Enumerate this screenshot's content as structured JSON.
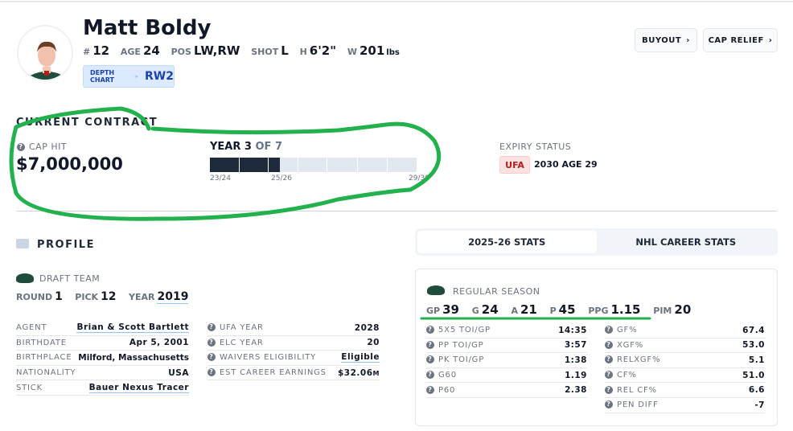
{
  "player": {
    "name": "Matt Boldy",
    "info": [
      {
        "label": "#",
        "value": "12"
      },
      {
        "label": "AGE",
        "value": "24"
      },
      {
        "label": "POS",
        "value": "LW,RW"
      },
      {
        "label": "SHOT",
        "value": "L"
      },
      {
        "label": "H",
        "value": "6'2\""
      },
      {
        "label": "W",
        "value": "201",
        "unit": "lbs"
      }
    ],
    "depth_chart": {
      "label": "DEPTH CHART",
      "value": "RW2"
    }
  },
  "actions": {
    "buyout": "BUYOUT",
    "cap_relief": "CAP RELIEF"
  },
  "contract": {
    "heading": "CURRENT CONTRACT",
    "cap_hit_label": "CAP HIT",
    "cap_hit": "$7,000,000",
    "year_prefix": "YEAR",
    "year_current": "3",
    "year_of": "OF 7",
    "progress_years_elapsed": 2.4,
    "total_years": 7,
    "ticks": [
      "23/24",
      "25/26",
      "29/30"
    ],
    "expiry_label": "EXPIRY STATUS",
    "expiry_badge": "UFA",
    "expiry_text": "2030 AGE 29",
    "colors": {
      "filled": "#1e293b",
      "empty": "#e2e8f0",
      "badge_bg": "#fee2e2",
      "badge_text": "#b91c1c"
    }
  },
  "profile": {
    "heading": "PROFILE",
    "draft_team_label": "DRAFT TEAM",
    "draft": [
      {
        "label": "ROUND",
        "value": "1"
      },
      {
        "label": "PICK",
        "value": "12"
      },
      {
        "label": "YEAR",
        "value": "2019"
      }
    ],
    "left_rows": [
      {
        "label": "AGENT",
        "value": "Brian & Scott Bartlett"
      },
      {
        "label": "BIRTHDATE",
        "value": "Apr 5, 2001"
      },
      {
        "label": "BIRTHPLACE",
        "value": "Milford, Massachusetts"
      },
      {
        "label": "NATIONALITY",
        "value": "USA"
      },
      {
        "label": "STICK",
        "value": "Bauer Nexus Tracer"
      }
    ],
    "right_rows": [
      {
        "label": "UFA YEAR",
        "value": "2028"
      },
      {
        "label": "ELC YEAR",
        "value": "20"
      },
      {
        "label": "WAIVERS ELIGIBILITY",
        "value": "Eligible"
      },
      {
        "label": "EST CAREER EARNINGS",
        "value": "$32.06",
        "unit": "M"
      }
    ]
  },
  "stats": {
    "tabs": [
      "2025-26 STATS",
      "NHL CAREER STATS"
    ],
    "season_label": "REGULAR SEASON",
    "summary": [
      {
        "label": "GP",
        "value": "39"
      },
      {
        "label": "G",
        "value": "24"
      },
      {
        "label": "A",
        "value": "21"
      },
      {
        "label": "P",
        "value": "45"
      },
      {
        "label": "PPG",
        "value": "1.15"
      },
      {
        "label": "PIM",
        "value": "20"
      }
    ],
    "left_rows": [
      {
        "label": "5X5 TOI/GP",
        "value": "14:35"
      },
      {
        "label": "PP TOI/GP",
        "value": "3:57"
      },
      {
        "label": "PK TOI/GP",
        "value": "1:38"
      },
      {
        "label": "G60",
        "value": "1.19"
      },
      {
        "label": "P60",
        "value": "2.38"
      }
    ],
    "right_rows": [
      {
        "label": "GF%",
        "value": "67.4"
      },
      {
        "label": "XGF%",
        "value": "53.0"
      },
      {
        "label": "RELXGF%",
        "value": "5.1"
      },
      {
        "label": "CF%",
        "value": "51.0"
      },
      {
        "label": "REL CF%",
        "value": "6.6"
      },
      {
        "label": "PEN DIFF",
        "value": "-7"
      }
    ]
  },
  "annotation_color": "#22b14c"
}
